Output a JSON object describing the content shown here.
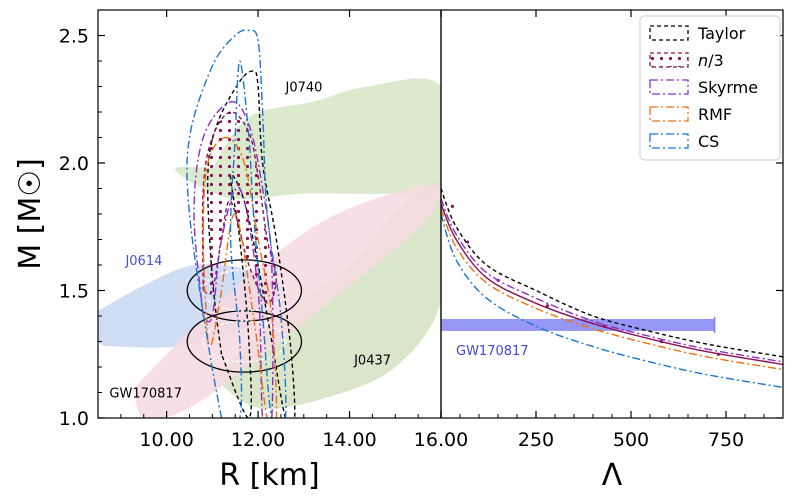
{
  "chart_data": [
    {
      "type": "area",
      "xlabel": "R [km]",
      "ylabel": "M [M☉]",
      "xlim": [
        8.5,
        16.0
      ],
      "ylim": [
        1.0,
        2.6
      ],
      "xticks": [
        10.0,
        12.0,
        14.0,
        16.0
      ],
      "xtick_labels": [
        "10.00",
        "12.00",
        "14.00",
        "16.00"
      ],
      "yticks": [
        1.0,
        1.5,
        2.0,
        2.5
      ],
      "ytick_labels": [
        "1.0",
        "1.5",
        "2.0",
        "2.5"
      ],
      "constraints": [
        {
          "label": "J0740",
          "color": "#000000",
          "region": [
            [
              11.0,
              1.98
            ],
            [
              11.8,
              2.18
            ],
            [
              13.2,
              2.24
            ],
            [
              14.4,
              2.3
            ],
            [
              16.0,
              2.3
            ],
            [
              16.0,
              1.9
            ],
            [
              14.8,
              1.88
            ],
            [
              13.0,
              1.88
            ],
            [
              11.5,
              1.86
            ],
            [
              10.6,
              1.92
            ],
            [
              10.2,
              1.98
            ]
          ],
          "fill": "#d5e6c4"
        },
        {
          "label": "J0614",
          "color": "#4455cc",
          "region": [
            [
              8.5,
              1.42
            ],
            [
              9.5,
              1.52
            ],
            [
              10.6,
              1.6
            ],
            [
              11.8,
              1.58
            ],
            [
              12.4,
              1.5
            ],
            [
              12.2,
              1.4
            ],
            [
              11.2,
              1.32
            ],
            [
              10.2,
              1.28
            ],
            [
              9.0,
              1.28
            ],
            [
              8.5,
              1.3
            ]
          ],
          "fill": "#c9d7f1"
        },
        {
          "label": "J0437",
          "color": "#000000",
          "region": [
            [
              11.0,
              1.16
            ],
            [
              12.5,
              1.4
            ],
            [
              14.0,
              1.6
            ],
            [
              15.2,
              1.84
            ],
            [
              16.0,
              1.9
            ],
            [
              16.0,
              1.46
            ],
            [
              15.0,
              1.2
            ],
            [
              13.5,
              1.08
            ],
            [
              12.0,
              1.04
            ]
          ],
          "fill": "#d3e2c1"
        },
        {
          "label": "GW170817",
          "color": "#000000",
          "region": [
            [
              9.3,
              1.12
            ],
            [
              10.5,
              1.34
            ],
            [
              11.8,
              1.56
            ],
            [
              13.5,
              1.78
            ],
            [
              15.3,
              1.9
            ],
            [
              16.0,
              1.9
            ],
            [
              15.6,
              1.76
            ],
            [
              14.0,
              1.52
            ],
            [
              12.2,
              1.26
            ],
            [
              10.5,
              1.04
            ],
            [
              9.5,
              1.0
            ]
          ],
          "fill": "#f7d9e1"
        }
      ],
      "series": [
        {
          "name": "Taylor",
          "color": "#000000",
          "dash": "4,3",
          "outer": [
            [
              11.2,
              1.25
            ],
            [
              11.0,
              1.55
            ],
            [
              10.9,
              1.95
            ],
            [
              11.1,
              2.15
            ],
            [
              11.6,
              2.32
            ],
            [
              11.9,
              2.36
            ],
            [
              12.0,
              2.3
            ],
            [
              12.1,
              2.0
            ],
            [
              12.4,
              1.7
            ],
            [
              12.7,
              1.3
            ],
            [
              12.8,
              1.0
            ],
            [
              12.6,
              1.0
            ],
            [
              12.3,
              1.3
            ],
            [
              12.0,
              1.6
            ],
            [
              11.7,
              1.85
            ],
            [
              11.4,
              1.95
            ],
            [
              11.6,
              1.7
            ],
            [
              11.8,
              1.3
            ],
            [
              11.8,
              1.0
            ]
          ]
        },
        {
          "name": "n/3",
          "color": "#8b1155",
          "dash": "4,3",
          "dotted": true,
          "outer": [
            [
              10.8,
              1.5
            ],
            [
              10.8,
              1.9
            ],
            [
              11.0,
              2.1
            ],
            [
              11.4,
              2.2
            ],
            [
              11.8,
              2.12
            ],
            [
              12.0,
              1.95
            ],
            [
              12.2,
              1.7
            ],
            [
              12.4,
              1.55
            ],
            [
              12.2,
              1.45
            ],
            [
              11.8,
              1.6
            ],
            [
              11.4,
              1.85
            ],
            [
              11.2,
              1.7
            ],
            [
              11.0,
              1.5
            ]
          ]
        },
        {
          "name": "Skyrme",
          "color": "#8a2fc7",
          "dash": "8,3,2,3",
          "outer": [
            [
              10.8,
              1.4
            ],
            [
              10.6,
              1.8
            ],
            [
              10.8,
              2.1
            ],
            [
              11.4,
              2.24
            ],
            [
              11.8,
              2.15
            ],
            [
              12.1,
              1.9
            ],
            [
              12.3,
              1.6
            ],
            [
              12.3,
              1.0
            ],
            [
              12.1,
              1.0
            ],
            [
              12.0,
              1.5
            ],
            [
              11.6,
              1.9
            ],
            [
              11.2,
              1.7
            ],
            [
              11.0,
              1.4
            ]
          ]
        },
        {
          "name": "RMF",
          "color": "#f07010",
          "dash": "8,3,2,3",
          "outer": [
            [
              10.9,
              1.3
            ],
            [
              10.8,
              1.7
            ],
            [
              10.9,
              2.0
            ],
            [
              11.3,
              2.1
            ],
            [
              11.7,
              2.0
            ],
            [
              12.0,
              1.7
            ],
            [
              12.3,
              1.4
            ],
            [
              12.4,
              1.0
            ],
            [
              12.2,
              1.0
            ],
            [
              11.9,
              1.4
            ],
            [
              11.5,
              1.8
            ],
            [
              11.2,
              1.5
            ],
            [
              11.0,
              1.3
            ]
          ]
        },
        {
          "name": "CS",
          "color": "#1976d2",
          "dash": "8,3,2,3",
          "outer": [
            [
              11.2,
              1.0
            ],
            [
              10.9,
              1.3
            ],
            [
              10.5,
              1.8
            ],
            [
              10.5,
              2.1
            ],
            [
              11.0,
              2.38
            ],
            [
              11.5,
              2.5
            ],
            [
              11.8,
              2.52
            ],
            [
              12.0,
              2.48
            ],
            [
              12.1,
              2.2
            ],
            [
              12.2,
              1.8
            ],
            [
              12.5,
              1.4
            ],
            [
              12.6,
              1.0
            ],
            [
              12.3,
              1.0
            ],
            [
              12.1,
              1.4
            ],
            [
              11.9,
              1.8
            ],
            [
              11.8,
              2.1
            ],
            [
              11.6,
              2.4
            ],
            [
              11.5,
              2.1
            ],
            [
              11.4,
              1.7
            ],
            [
              11.6,
              1.3
            ],
            [
              11.6,
              1.0
            ]
          ]
        }
      ],
      "gw_contours": [
        {
          "color": "#000000",
          "dash": "",
          "center": [
            11.7,
            1.5
          ],
          "rx": 1.25,
          "ry": 0.12
        },
        {
          "color": "#000000",
          "dash": "",
          "center": [
            11.7,
            1.3
          ],
          "rx": 1.25,
          "ry": 0.12
        },
        {
          "color": "#ffffff",
          "dash": "3,2",
          "center": [
            11.7,
            1.5
          ],
          "rx": 0.9,
          "ry": 0.08
        },
        {
          "color": "#ffffff",
          "dash": "3,2",
          "center": [
            11.7,
            1.3
          ],
          "rx": 0.9,
          "ry": 0.08
        }
      ]
    },
    {
      "type": "line",
      "xlabel": "Λ",
      "ylabel": "",
      "xlim": [
        0,
        900
      ],
      "ylim": [
        1.0,
        2.6
      ],
      "xticks": [
        0,
        250,
        500,
        750
      ],
      "xtick_labels": [
        "",
        "250",
        "500",
        "750"
      ],
      "series": [
        {
          "name": "Taylor",
          "color": "#000000",
          "dash": "4,3",
          "points": [
            [
              0,
              1.9
            ],
            [
              40,
              1.75
            ],
            [
              120,
              1.6
            ],
            [
              250,
              1.5
            ],
            [
              400,
              1.4
            ],
            [
              550,
              1.34
            ],
            [
              700,
              1.29
            ],
            [
              900,
              1.24
            ]
          ]
        },
        {
          "name": "n/3",
          "color": "#8b1155",
          "dash": "0",
          "points": [
            [
              0,
              1.84
            ],
            [
              40,
              1.7
            ],
            [
              120,
              1.55
            ],
            [
              250,
              1.45
            ],
            [
              400,
              1.37
            ],
            [
              550,
              1.31
            ],
            [
              700,
              1.26
            ],
            [
              900,
              1.21
            ]
          ]
        },
        {
          "name": "Skyrme",
          "color": "#8a2fc7",
          "dash": "8,3,2,3",
          "points": [
            [
              0,
              1.86
            ],
            [
              40,
              1.72
            ],
            [
              120,
              1.57
            ],
            [
              250,
              1.47
            ],
            [
              400,
              1.38
            ],
            [
              550,
              1.32
            ],
            [
              700,
              1.27
            ],
            [
              900,
              1.22
            ]
          ]
        },
        {
          "name": "RMF",
          "color": "#f07010",
          "dash": "8,3,2,3",
          "points": [
            [
              0,
              1.82
            ],
            [
              40,
              1.67
            ],
            [
              120,
              1.53
            ],
            [
              250,
              1.43
            ],
            [
              400,
              1.35
            ],
            [
              550,
              1.29
            ],
            [
              700,
              1.24
            ],
            [
              900,
              1.19
            ]
          ]
        },
        {
          "name": "CS",
          "color": "#1976d2",
          "dash": "8,3,2,3",
          "points": [
            [
              0,
              1.8
            ],
            [
              40,
              1.62
            ],
            [
              120,
              1.47
            ],
            [
              250,
              1.36
            ],
            [
              400,
              1.28
            ],
            [
              550,
              1.22
            ],
            [
              700,
              1.17
            ],
            [
              900,
              1.12
            ]
          ]
        }
      ],
      "gw_bar": {
        "label": "GW170817",
        "lambda_range": [
          0,
          720
        ],
        "m_center": 1.365,
        "color": "#7c7cf5"
      }
    }
  ],
  "annotations": {
    "j0740": "J0740",
    "j0614": "J0614",
    "j0437": "J0437",
    "gw170817_left": "GW170817",
    "gw170817_right": "GW170817"
  },
  "legend": {
    "placement": "top-right",
    "items": [
      {
        "label": "Taylor",
        "color": "#000000",
        "style": "dashed"
      },
      {
        "label": "n/3",
        "color": "#8b1155",
        "style": "dotted-fill"
      },
      {
        "label": "Skyrme",
        "color": "#8a2fc7",
        "style": "dashdot"
      },
      {
        "label": "RMF",
        "color": "#f07010",
        "style": "dashdot"
      },
      {
        "label": "CS",
        "color": "#1976d2",
        "style": "dashdot"
      }
    ]
  }
}
